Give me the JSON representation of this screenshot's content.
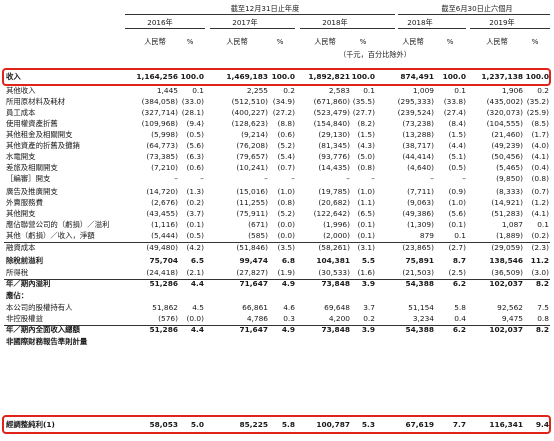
{
  "header": {
    "fy_label": "截至12月31日止年度",
    "h1_label": "截至6月30日止六個月",
    "years": [
      "2016年",
      "2017年",
      "2018年",
      "2018年",
      "2019年"
    ],
    "col_amt": "人民幣",
    "col_pct": "%",
    "unit_note": "（千元，百分比除外）"
  },
  "rows": [
    {
      "label": "收入",
      "v": [
        "1,164,256",
        "100.0",
        "1,469,183",
        "100.0",
        "1,892,821",
        "100.0",
        "874,491",
        "100.0",
        "1,237,138",
        "100.0"
      ],
      "bold": true
    },
    {
      "label": "其他收入",
      "v": [
        "1,445",
        "0.1",
        "2,255",
        "0.2",
        "2,583",
        "0.1",
        "1,009",
        "0.1",
        "1,906",
        "0.2"
      ]
    },
    {
      "label": "所用原材料及耗材",
      "v": [
        "(384,058)",
        "(33.0)",
        "(512,510)",
        "(34.9)",
        "(671,860)",
        "(35.5)",
        "(295,333)",
        "(33.8)",
        "(435,002)",
        "(35.2)"
      ]
    },
    {
      "label": "員工成本",
      "v": [
        "(327,714)",
        "(28.1)",
        "(400,227)",
        "(27.2)",
        "(523,479)",
        "(27.7)",
        "(239,524)",
        "(27.4)",
        "(320,073)",
        "(25.9)"
      ]
    },
    {
      "label": "使用權資產折舊",
      "v": [
        "(109,968)",
        "(9.4)",
        "(128,623)",
        "(8.8)",
        "(154,840)",
        "(8.2)",
        "(73,238)",
        "(8.4)",
        "(104,555)",
        "(8.5)"
      ]
    },
    {
      "label": "其他租金及相關開支",
      "v": [
        "(5,998)",
        "(0.5)",
        "(9,214)",
        "(0.6)",
        "(29,130)",
        "(1.5)",
        "(13,288)",
        "(1.5)",
        "(21,460)",
        "(1.7)"
      ]
    },
    {
      "label": "其他資產的折舊及攤銷",
      "v": [
        "(64,773)",
        "(5.6)",
        "(76,208)",
        "(5.2)",
        "(81,345)",
        "(4.3)",
        "(38,717)",
        "(4.4)",
        "(49,239)",
        "(4.0)"
      ]
    },
    {
      "label": "水電開支",
      "v": [
        "(73,385)",
        "(6.3)",
        "(79,657)",
        "(5.4)",
        "(93,776)",
        "(5.0)",
        "(44,414)",
        "(5.1)",
        "(50,456)",
        "(4.1)"
      ]
    },
    {
      "label": "差旅及相關開支",
      "v": [
        "(7,210)",
        "(0.6)",
        "(10,241)",
        "(0.7)",
        "(14,435)",
        "(0.8)",
        "(4,640)",
        "(0.5)",
        "(5,465)",
        "(0.4)"
      ]
    },
    {
      "label": "［編審］開支",
      "v": [
        "–",
        "–",
        "–",
        "–",
        "–",
        "–",
        "–",
        "–",
        "(9,850)",
        "(0.8)"
      ]
    },
    {
      "label": "廣告及推廣開支",
      "v": [
        "(14,720)",
        "(1.3)",
        "(15,016)",
        "(1.0)",
        "(19,785)",
        "(1.0)",
        "(7,711)",
        "(0.9)",
        "(8,333)",
        "(0.7)"
      ]
    },
    {
      "label": "外賣服務費",
      "v": [
        "(2,676)",
        "(0.2)",
        "(11,255)",
        "(0.8)",
        "(20,682)",
        "(1.1)",
        "(9,063)",
        "(1.0)",
        "(14,921)",
        "(1.2)"
      ]
    },
    {
      "label": "其他開支",
      "v": [
        "(43,455)",
        "(3.7)",
        "(75,911)",
        "(5.2)",
        "(122,642)",
        "(6.5)",
        "(49,386)",
        "(5.6)",
        "(51,283)",
        "(4.1)"
      ]
    },
    {
      "label": "應佔聯營公司的（虧損）／溢利",
      "v": [
        "(1,116)",
        "(0.1)",
        "(671)",
        "(0.0)",
        "(1,996)",
        "(0.1)",
        "(1,309)",
        "(0.1)",
        "1,087",
        "0.1"
      ]
    },
    {
      "label": "其他（虧損）／收入，淨額",
      "v": [
        "(5,444)",
        "(0.5)",
        "(585)",
        "(0.0)",
        "(2,000)",
        "(0.1)",
        "879",
        "0.1",
        "(1,889)",
        "(0.2)"
      ]
    },
    {
      "label": "融資成本",
      "v": [
        "(49,480)",
        "(4.2)",
        "(51,846)",
        "(3.5)",
        "(58,261)",
        "(3.1)",
        "(23,865)",
        "(2.7)",
        "(29,059)",
        "(2.3)"
      ]
    },
    {
      "label": "除稅前溢利",
      "v": [
        "75,704",
        "6.5",
        "99,474",
        "6.8",
        "104,381",
        "5.5",
        "75,891",
        "8.7",
        "138,546",
        "11.2"
      ],
      "bold": true
    },
    {
      "label": "所得稅",
      "v": [
        "(24,418)",
        "(2.1)",
        "(27,827)",
        "(1.9)",
        "(30,533)",
        "(1.6)",
        "(21,503)",
        "(2.5)",
        "(36,509)",
        "(3.0)"
      ]
    },
    {
      "label": "年／期內溢利",
      "v": [
        "51,286",
        "4.4",
        "71,647",
        "4.9",
        "73,848",
        "3.9",
        "54,388",
        "6.2",
        "102,037",
        "8.2"
      ],
      "bold": true
    },
    {
      "label": "應佔：",
      "v": [
        "",
        "",
        "",
        "",
        "",
        "",
        "",
        "",
        "",
        ""
      ],
      "bold": true
    },
    {
      "label": "本公司的股權持有人",
      "v": [
        "51,862",
        "4.5",
        "66,861",
        "4.6",
        "69,648",
        "3.7",
        "51,154",
        "5.8",
        "92,562",
        "7.5"
      ]
    },
    {
      "label": "非控股權益",
      "v": [
        "(576)",
        "(0.0)",
        "4,786",
        "0.3",
        "4,200",
        "0.2",
        "3,234",
        "0.4",
        "9,475",
        "0.8"
      ]
    },
    {
      "label": "年／期內全面收入總額",
      "v": [
        "51,286",
        "4.4",
        "71,647",
        "4.9",
        "73,848",
        "3.9",
        "54,388",
        "6.2",
        "102,037",
        "8.2"
      ],
      "bold": true
    },
    {
      "label": "非國際財務報告準則計量",
      "v": [
        "",
        "",
        "",
        "",
        "",
        "",
        "",
        "",
        "",
        ""
      ],
      "bold": true
    },
    {
      "label": "經調整純利(1)",
      "v": [
        "58,053",
        "5.0",
        "85,225",
        "5.8",
        "100,787",
        "5.3",
        "67,619",
        "7.7",
        "116,341",
        "9.4"
      ],
      "bold": true
    }
  ]
}
